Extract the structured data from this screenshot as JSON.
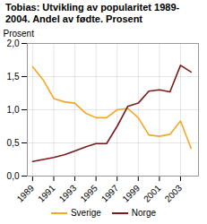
{
  "chart_data": {
    "type": "line",
    "title": "Tobias: Utvikling av popularitet 1989-\n2004. Andel av fødte. Prosent",
    "ylabel": "Prosent",
    "x": [
      1989,
      1990,
      1991,
      1992,
      1993,
      1994,
      1995,
      1996,
      1997,
      1998,
      1999,
      2000,
      2001,
      2002,
      2003,
      2004
    ],
    "series": [
      {
        "name": "Sverige",
        "color": "#f5a623",
        "values": [
          1.65,
          1.45,
          1.17,
          1.12,
          1.1,
          0.95,
          0.88,
          0.88,
          1.0,
          1.02,
          0.88,
          0.62,
          0.6,
          0.63,
          0.83,
          0.42
        ]
      },
      {
        "name": "Norge",
        "color": "#7b1a1a",
        "values": [
          0.22,
          0.25,
          0.28,
          0.32,
          0.38,
          0.44,
          0.49,
          0.49,
          0.75,
          1.05,
          1.1,
          1.28,
          1.3,
          1.27,
          1.67,
          1.57
        ]
      }
    ],
    "xlim": [
      1988.5,
      2004.7
    ],
    "xticks": [
      1989,
      1991,
      1993,
      1995,
      1997,
      1999,
      2001,
      2003
    ],
    "ylim": [
      0.0,
      2.0
    ],
    "yticks": [
      {
        "value": 0.0,
        "label": "0,0"
      },
      {
        "value": 0.5,
        "label": "0,5"
      },
      {
        "value": 1.0,
        "label": "1,0"
      },
      {
        "value": 1.5,
        "label": "1,5"
      },
      {
        "value": 2.0,
        "label": "2,0"
      }
    ],
    "grid": true,
    "legend": "bottom"
  }
}
